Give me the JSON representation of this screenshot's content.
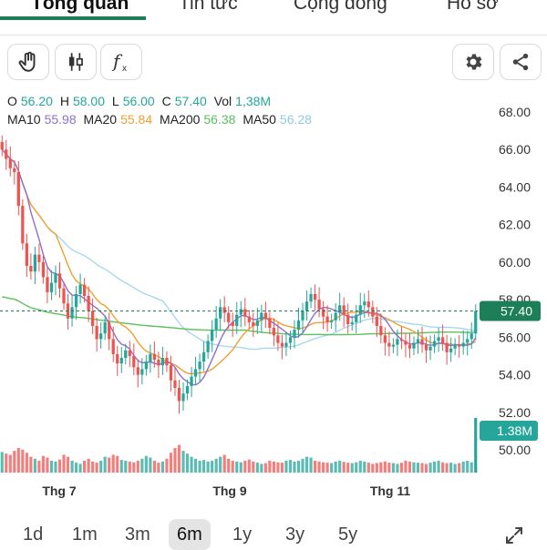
{
  "tabs": [
    {
      "label": "Tổng quan",
      "active": true
    },
    {
      "label": "Tin tức",
      "active": false
    },
    {
      "label": "Cộng đồng",
      "active": false
    },
    {
      "label": "Hồ sơ",
      "active": false
    }
  ],
  "toolbar": {
    "icons": [
      "hand-pointer-icon",
      "candlestick-icon",
      "function-fx-icon",
      "settings-gear-icon",
      "share-icon"
    ],
    "fx_label": "f"
  },
  "ohlc": {
    "o_label": "O",
    "o": "56.20",
    "h_label": "H",
    "h": "58.00",
    "l_label": "L",
    "l": "56.00",
    "c_label": "C",
    "c": "57.40",
    "vol_label": "Vol",
    "vol": "1,38M"
  },
  "ma": {
    "ma10_label": "MA10",
    "ma10": "55.98",
    "ma20_label": "MA20",
    "ma20": "55.84",
    "ma200_label": "MA200",
    "ma200": "56.38",
    "ma50_label": "MA50",
    "ma50": "56.28"
  },
  "colors": {
    "up": "#26a69a",
    "down": "#ef5350",
    "ma10": "#8e6fd0",
    "ma20": "#f0a030",
    "ma200": "#5cc05c",
    "ma50": "#a8d8f0",
    "accent": "#1d7f57"
  },
  "chart_data": {
    "type": "candlestick",
    "price_axis_ticks": [
      "68.00",
      "66.00",
      "64.00",
      "62.00",
      "60.00",
      "58.00",
      "56.00",
      "54.00",
      "52.00",
      "50.00"
    ],
    "price_range": [
      49.2,
      68.6
    ],
    "x_labels": [
      "Thg 7",
      "Thg 9",
      "Thg 11"
    ],
    "last_price_label": "57.40",
    "last_price": 57.4,
    "last_volume_label": "1.38M",
    "close": [
      66.0,
      65.5,
      65.0,
      64.8,
      63.0,
      61.0,
      59.8,
      59.5,
      60.4,
      60.0,
      59.2,
      58.4,
      58.9,
      59.4,
      58.6,
      57.8,
      57.0,
      57.6,
      58.3,
      58.8,
      58.2,
      57.4,
      56.6,
      55.9,
      56.2,
      56.8,
      55.9,
      55.1,
      54.6,
      54.9,
      55.3,
      55.0,
      54.4,
      54.0,
      54.3,
      54.7,
      55.1,
      54.8,
      54.5,
      54.9,
      54.5,
      53.7,
      53.3,
      52.6,
      53.0,
      53.4,
      53.9,
      54.3,
      54.7,
      55.2,
      55.8,
      56.4,
      57.0,
      57.6,
      57.3,
      56.8,
      56.6,
      57.2,
      57.5,
      57.1,
      56.8,
      56.6,
      56.9,
      57.3,
      57.0,
      56.5,
      56.1,
      55.7,
      55.5,
      55.7,
      56.0,
      56.4,
      56.9,
      57.4,
      57.9,
      58.3,
      58.0,
      57.5,
      57.1,
      56.8,
      56.9,
      57.3,
      57.7,
      57.2,
      56.7,
      56.8,
      57.2,
      57.7,
      57.9,
      57.6,
      57.1,
      56.6,
      56.1,
      55.7,
      55.5,
      55.6,
      55.9,
      55.8,
      55.6,
      55.4,
      55.7,
      55.9,
      55.6,
      55.3,
      55.5,
      55.8,
      56.0,
      55.7,
      55.2,
      55.4,
      55.6,
      55.5,
      55.7,
      55.9,
      56.2,
      57.4
    ],
    "volume": [
      0.52,
      0.48,
      0.45,
      0.55,
      0.62,
      0.58,
      0.5,
      0.4,
      0.35,
      0.3,
      0.42,
      0.38,
      0.3,
      0.28,
      0.33,
      0.45,
      0.4,
      0.3,
      0.25,
      0.22,
      0.3,
      0.35,
      0.28,
      0.25,
      0.3,
      0.4,
      0.38,
      0.45,
      0.42,
      0.32,
      0.3,
      0.28,
      0.26,
      0.3,
      0.35,
      0.42,
      0.38,
      0.3,
      0.25,
      0.28,
      0.35,
      0.5,
      0.62,
      0.7,
      0.55,
      0.48,
      0.4,
      0.35,
      0.3,
      0.32,
      0.28,
      0.3,
      0.35,
      0.4,
      0.45,
      0.35,
      0.3,
      0.28,
      0.26,
      0.3,
      0.33,
      0.28,
      0.25,
      0.22,
      0.24,
      0.3,
      0.28,
      0.26,
      0.25,
      0.3,
      0.32,
      0.28,
      0.3,
      0.35,
      0.4,
      0.38,
      0.3,
      0.28,
      0.26,
      0.25,
      0.24,
      0.28,
      0.3,
      0.27,
      0.25,
      0.24,
      0.26,
      0.3,
      0.28,
      0.25,
      0.22,
      0.24,
      0.26,
      0.28,
      0.25,
      0.24,
      0.22,
      0.25,
      0.3,
      0.28,
      0.26,
      0.25,
      0.24,
      0.22,
      0.25,
      0.28,
      0.3,
      0.26,
      0.24,
      0.25,
      0.22,
      0.24,
      0.28,
      0.3,
      0.26,
      1.38
    ]
  },
  "ranges": [
    {
      "label": "1d",
      "active": false
    },
    {
      "label": "1m",
      "active": false
    },
    {
      "label": "3m",
      "active": false
    },
    {
      "label": "6m",
      "active": true
    },
    {
      "label": "1y",
      "active": false
    },
    {
      "label": "3y",
      "active": false
    },
    {
      "label": "5y",
      "active": false
    }
  ],
  "expand_icon": "expand-icon"
}
